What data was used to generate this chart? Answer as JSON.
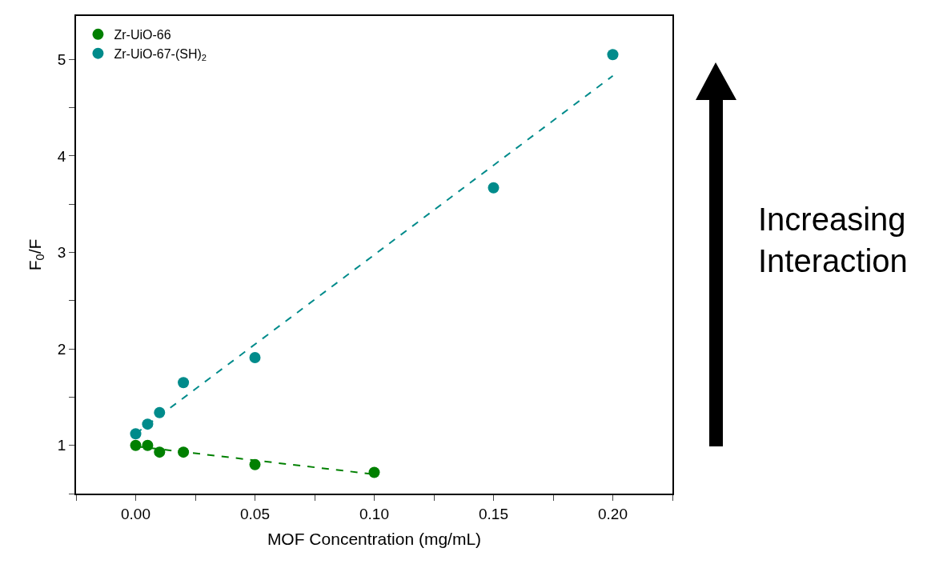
{
  "chart_data": {
    "type": "scatter",
    "xlabel": "MOF Concentration (mg/mL)",
    "ylabel": "F$_{0}$/F",
    "annotations": [
      "Increasing Interaction"
    ],
    "xlim": [
      -0.025,
      0.225
    ],
    "xticks": [
      {
        "value": -0.025,
        "label": null
      },
      {
        "value": 0.0,
        "label": "0.00"
      },
      {
        "value": 0.025,
        "label": null
      },
      {
        "value": 0.05,
        "label": "0.05"
      },
      {
        "value": 0.075,
        "label": null
      },
      {
        "value": 0.1,
        "label": "0.10"
      },
      {
        "value": 0.125,
        "label": null
      },
      {
        "value": 0.15,
        "label": "0.15"
      },
      {
        "value": 0.175,
        "label": null
      },
      {
        "value": 0.2,
        "label": "0.20"
      },
      {
        "value": 0.225,
        "label": null
      }
    ],
    "ylim": [
      0.5,
      5.45
    ],
    "yticks": [
      {
        "value": 0.5,
        "label": null
      },
      1,
      {
        "value": 1.5,
        "label": null
      },
      2,
      {
        "value": 2.5,
        "label": null
      },
      3,
      {
        "value": 3.5,
        "label": null
      },
      4,
      {
        "value": 4.5,
        "label": null
      },
      5
    ],
    "legend": "top left",
    "marker": "circle",
    "series": [
      {
        "name": "Zr-UiO-66",
        "color": "#008000",
        "x": [
          0,
          0.005,
          0.01,
          0.02,
          0.05,
          0.1
        ],
        "values": [
          1.0,
          1.0,
          0.93,
          0.93,
          0.8,
          0.72
        ]
      },
      {
        "name": "Zr-UiO-67-(SH)$_{2}$",
        "color": "#008b8b",
        "x": [
          0,
          0.005,
          0.01,
          0.02,
          0.05,
          0.15,
          0.2
        ],
        "values": [
          1.12,
          1.22,
          1.34,
          1.65,
          1.91,
          3.67,
          5.05
        ]
      },
      {
        "type": "line",
        "line_style": "dashed",
        "marker": "none",
        "color": "#008000",
        "x": [
          0,
          0.1
        ],
        "values": [
          0.99,
          0.7
        ]
      },
      {
        "type": "line",
        "line_style": "dashed",
        "marker": "none",
        "color": "#008b8b",
        "x": [
          0,
          0.2
        ],
        "values": [
          1.12,
          4.83
        ]
      }
    ]
  }
}
